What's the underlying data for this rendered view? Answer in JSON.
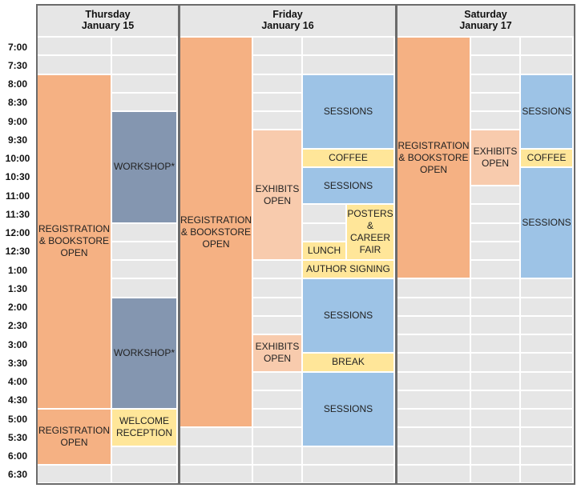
{
  "days": [
    {
      "name": "Thursday",
      "date": "January 15"
    },
    {
      "name": "Friday",
      "date": "January 16"
    },
    {
      "name": "Saturday",
      "date": "January 17"
    }
  ],
  "times": [
    "7:00",
    "7:30",
    "8:00",
    "8:30",
    "9:00",
    "9:30",
    "10:00",
    "10:30",
    "11:00",
    "11:30",
    "12:00",
    "12:30",
    "1:00",
    "1:30",
    "2:00",
    "2:30",
    "3:00",
    "3:30",
    "4:00",
    "4:30",
    "5:00",
    "5:30",
    "6:00",
    "6:30"
  ],
  "colors": {
    "registration": "#f5b183",
    "workshop": "#8496b0",
    "reception": "#ffe699",
    "exhibits": "#f8cbad",
    "sessions": "#9dc3e6",
    "coffee": "#ffe699",
    "empty": "#e6e6e6"
  },
  "events": [
    {
      "day": 0,
      "col": 0,
      "start": 2,
      "end": 20,
      "text": "REGISTRATION\n& BOOKSTORE\nOPEN",
      "kind": "registration",
      "name": "event-thursday-registration-bookstore"
    },
    {
      "day": 0,
      "col": 0,
      "start": 20,
      "end": 23,
      "text": "REGISTRATION\nOPEN",
      "kind": "registration",
      "name": "event-thursday-registration-evening"
    },
    {
      "day": 0,
      "col": 1,
      "start": 4,
      "end": 10,
      "text": "WORKSHOP*",
      "kind": "workshop",
      "name": "event-thursday-workshop-morning"
    },
    {
      "day": 0,
      "col": 1,
      "start": 14,
      "end": 20,
      "text": "WORKSHOP*",
      "kind": "workshop",
      "name": "event-thursday-workshop-afternoon"
    },
    {
      "day": 0,
      "col": 1,
      "start": 20,
      "end": 22,
      "text": "WELCOME\nRECEPTION",
      "kind": "reception",
      "name": "event-thursday-welcome-reception"
    },
    {
      "day": 1,
      "col": 0,
      "start": 0,
      "end": 21,
      "text": "REGISTRATION\n& BOOKSTORE\nOPEN",
      "kind": "registration",
      "name": "event-friday-registration-bookstore"
    },
    {
      "day": 1,
      "col": 1,
      "start": 5,
      "end": 12,
      "text": "EXHIBITS\nOPEN",
      "kind": "exhibits",
      "name": "event-friday-exhibits-morning"
    },
    {
      "day": 1,
      "col": 1,
      "start": 16,
      "end": 18,
      "text": "EXHIBITS\nOPEN",
      "kind": "exhibits",
      "name": "event-friday-exhibits-afternoon"
    },
    {
      "day": 1,
      "col": 2,
      "start": 2,
      "end": 6,
      "text": "SESSIONS",
      "kind": "sessions",
      "name": "event-friday-sessions-1"
    },
    {
      "day": 1,
      "col": 2,
      "start": 6,
      "end": 7,
      "text": "COFFEE",
      "kind": "coffee",
      "name": "event-friday-coffee"
    },
    {
      "day": 1,
      "col": 2,
      "start": 7,
      "end": 9,
      "text": "SESSIONS",
      "kind": "sessions",
      "name": "event-friday-sessions-2"
    },
    {
      "day": 1,
      "col": 3,
      "start": 9,
      "end": 12,
      "text": "POSTERS\n&\nCAREER\nFAIR",
      "kind": "coffee",
      "name": "event-friday-posters-career-fair"
    },
    {
      "day": 1,
      "col": 4,
      "start": 11,
      "end": 12,
      "text": "LUNCH",
      "kind": "coffee",
      "name": "event-friday-lunch"
    },
    {
      "day": 1,
      "col": 2,
      "start": 12,
      "end": 13,
      "text": "AUTHOR SIGNING",
      "kind": "coffee",
      "name": "event-friday-author-signing"
    },
    {
      "day": 1,
      "col": 2,
      "start": 13,
      "end": 17,
      "text": "SESSIONS",
      "kind": "sessions",
      "name": "event-friday-sessions-3"
    },
    {
      "day": 1,
      "col": 2,
      "start": 17,
      "end": 18,
      "text": "BREAK",
      "kind": "coffee",
      "name": "event-friday-break"
    },
    {
      "day": 1,
      "col": 2,
      "start": 18,
      "end": 22,
      "text": "SESSIONS",
      "kind": "sessions",
      "name": "event-friday-sessions-4"
    },
    {
      "day": 2,
      "col": 0,
      "start": 0,
      "end": 13,
      "text": "REGISTRATION\n& BOOKSTORE\nOPEN",
      "kind": "registration",
      "name": "event-saturday-registration-bookstore"
    },
    {
      "day": 2,
      "col": 1,
      "start": 5,
      "end": 8,
      "text": "EXHIBITS\nOPEN",
      "kind": "exhibits",
      "name": "event-saturday-exhibits"
    },
    {
      "day": 2,
      "col": 2,
      "start": 2,
      "end": 6,
      "text": "SESSIONS",
      "kind": "sessions",
      "name": "event-saturday-sessions-1"
    },
    {
      "day": 2,
      "col": 2,
      "start": 6,
      "end": 7,
      "text": "COFFEE",
      "kind": "coffee",
      "name": "event-saturday-coffee"
    },
    {
      "day": 2,
      "col": 2,
      "start": 7,
      "end": 13,
      "text": "SESSIONS",
      "kind": "sessions",
      "name": "event-saturday-sessions-2"
    }
  ]
}
